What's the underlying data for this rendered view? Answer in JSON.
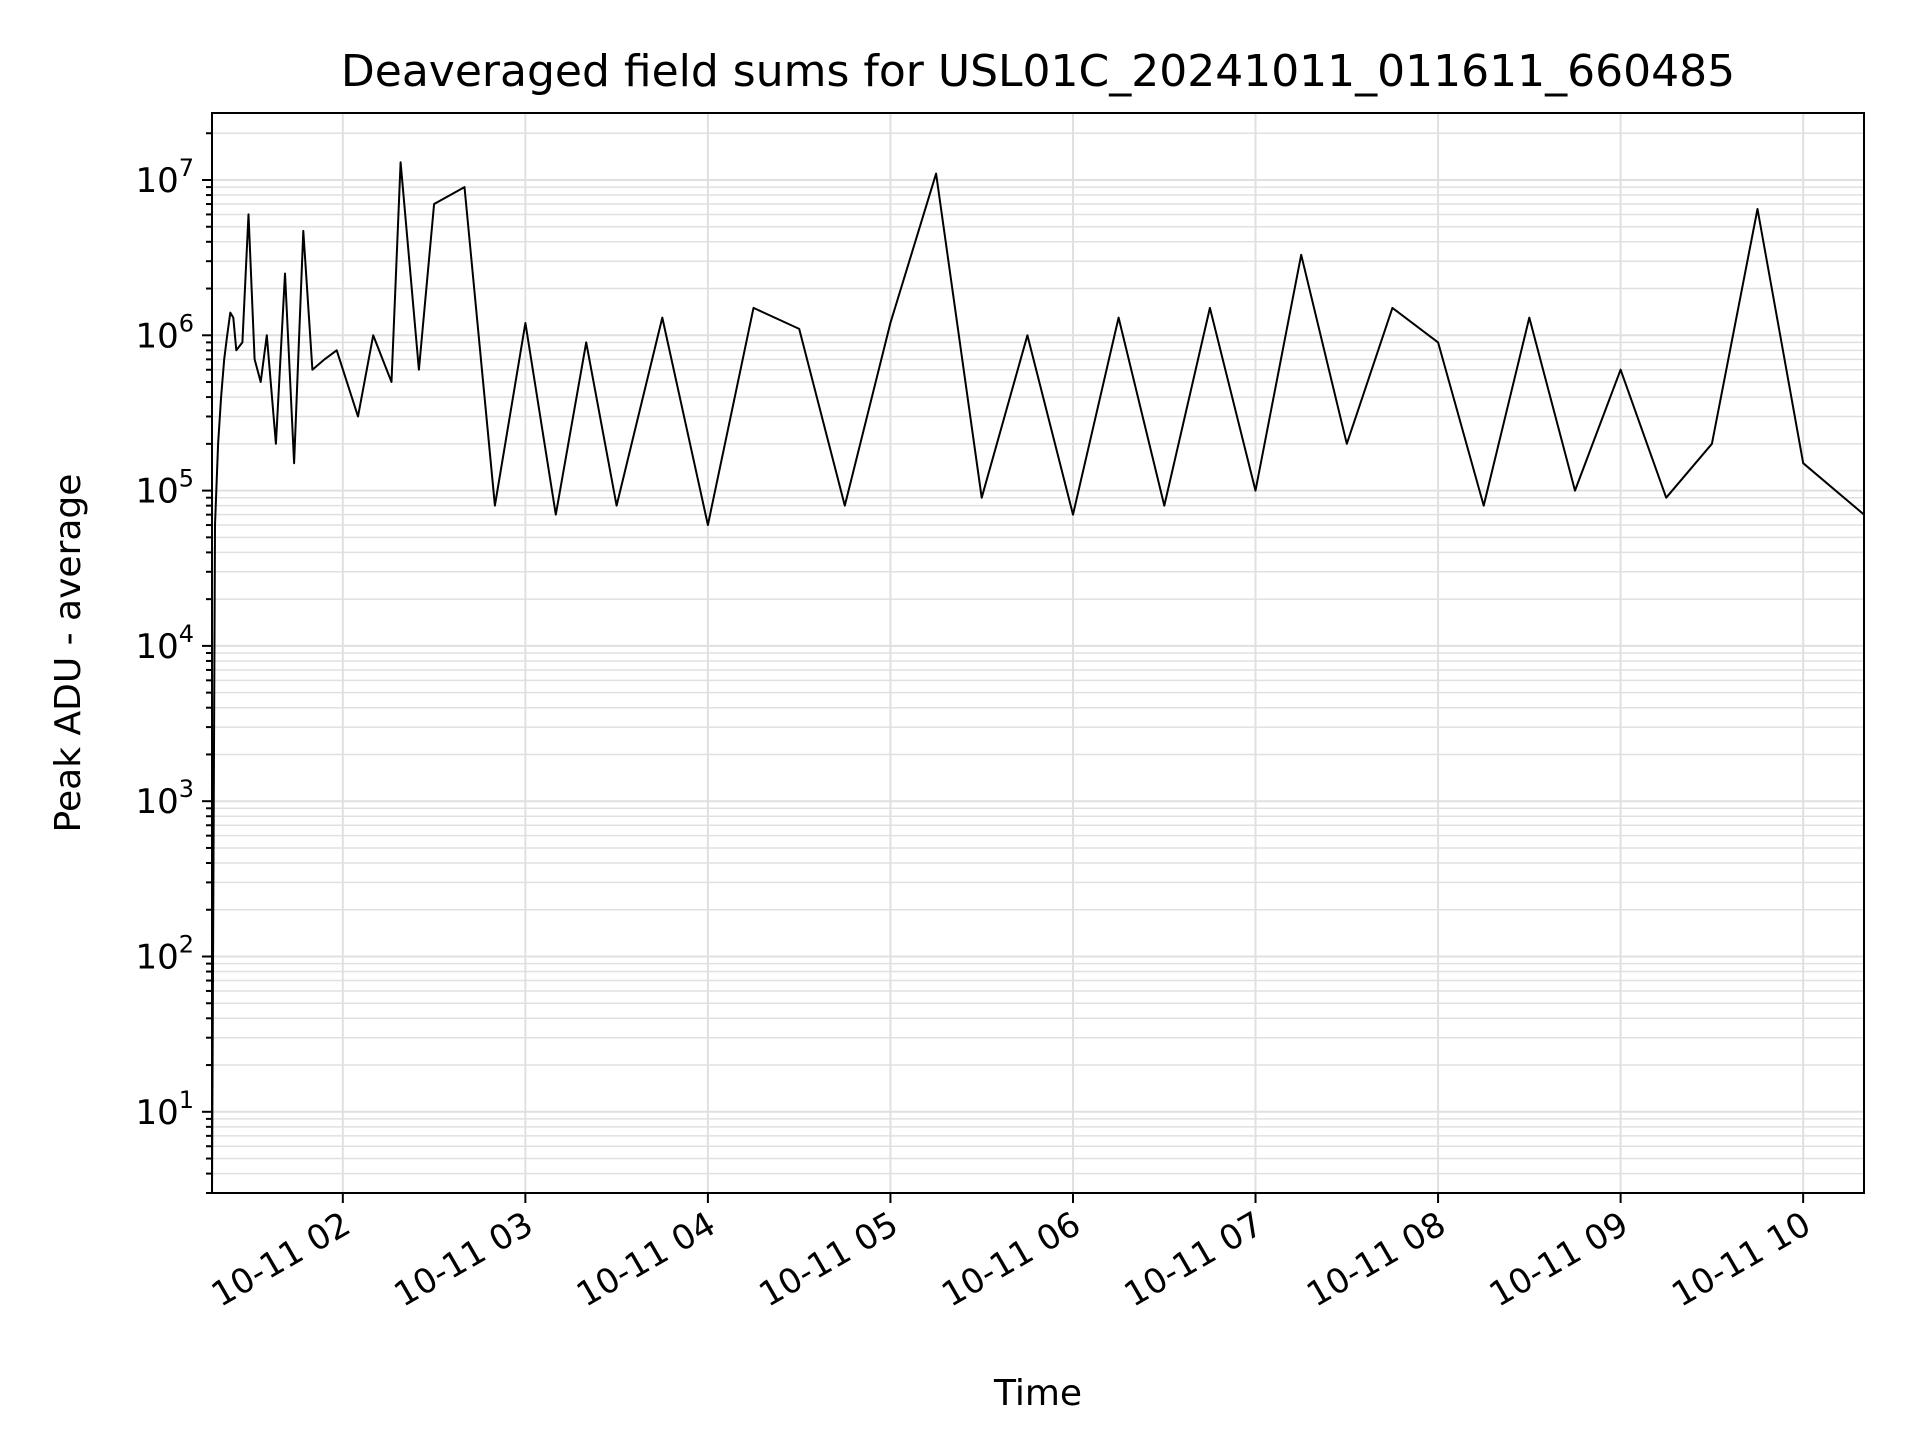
{
  "chart_data": {
    "type": "line",
    "title": "Deaveraged field sums for USL01C_20241011_011611_660485",
    "xlabel": "Time",
    "ylabel": "Peak ADU - average",
    "yscale": "log",
    "ylim": [
      3,
      27000000
    ],
    "xlim": [
      "2024-10-11 01:17",
      "2024-10-11 10:20"
    ],
    "grid": true,
    "grid_which": "both",
    "x_ticks": [
      "10-11 02",
      "10-11 03",
      "10-11 04",
      "10-11 05",
      "10-11 06",
      "10-11 07",
      "10-11 08",
      "10-11 09",
      "10-11 10"
    ],
    "y_ticks": [
      {
        "base": "10",
        "exp": "1"
      },
      {
        "base": "10",
        "exp": "2"
      },
      {
        "base": "10",
        "exp": "3"
      },
      {
        "base": "10",
        "exp": "4"
      },
      {
        "base": "10",
        "exp": "5"
      },
      {
        "base": "10",
        "exp": "6"
      },
      {
        "base": "10",
        "exp": "7"
      }
    ],
    "line_color": "#000000",
    "grid_color": "#e0e0e0",
    "series": [
      {
        "x": [
          "2024-10-11 01:17",
          "2024-10-11 01:18",
          "2024-10-11 01:19",
          "2024-10-11 01:20",
          "2024-10-11 01:21",
          "2024-10-11 01:22",
          "2024-10-11 01:23",
          "2024-10-11 01:24",
          "2024-10-11 01:25",
          "2024-10-11 01:27",
          "2024-10-11 01:29",
          "2024-10-11 01:31",
          "2024-10-11 01:33",
          "2024-10-11 01:35",
          "2024-10-11 01:38",
          "2024-10-11 01:41",
          "2024-10-11 01:44",
          "2024-10-11 01:47",
          "2024-10-11 01:50",
          "2024-10-11 01:54",
          "2024-10-11 01:58",
          "2024-10-11 02:05",
          "2024-10-11 02:10",
          "2024-10-11 02:16",
          "2024-10-11 02:19",
          "2024-10-11 02:25",
          "2024-10-11 02:30",
          "2024-10-11 02:40",
          "2024-10-11 02:50",
          "2024-10-11 03:00",
          "2024-10-11 03:10",
          "2024-10-11 03:20",
          "2024-10-11 03:30",
          "2024-10-11 03:45",
          "2024-10-11 04:00",
          "2024-10-11 04:15",
          "2024-10-11 04:30",
          "2024-10-11 04:45",
          "2024-10-11 05:00",
          "2024-10-11 05:15",
          "2024-10-11 05:30",
          "2024-10-11 05:45",
          "2024-10-11 06:00",
          "2024-10-11 06:15",
          "2024-10-11 06:30",
          "2024-10-11 06:45",
          "2024-10-11 07:00",
          "2024-10-11 07:15",
          "2024-10-11 07:30",
          "2024-10-11 07:45",
          "2024-10-11 08:00",
          "2024-10-11 08:15",
          "2024-10-11 08:30",
          "2024-10-11 08:45",
          "2024-10-11 09:00",
          "2024-10-11 09:15",
          "2024-10-11 09:30",
          "2024-10-11 09:45",
          "2024-10-11 10:00",
          "2024-10-11 10:20"
        ],
        "y": [
          3,
          60000,
          200000,
          400000,
          700000,
          1000000,
          1400000,
          1300000,
          800000,
          900000,
          6000000,
          700000,
          500000,
          1000000,
          200000,
          2500000,
          150000,
          4700000,
          600000,
          700000,
          800000,
          300000,
          1000000,
          500000,
          13000000,
          600000,
          7000000,
          9000000,
          80000,
          1200000,
          70000,
          900000,
          80000,
          1300000,
          60000,
          1500000,
          1100000,
          80000,
          1200000,
          11000000,
          90000,
          1000000,
          70000,
          1300000,
          80000,
          1500000,
          100000,
          3300000,
          200000,
          1500000,
          900000,
          80000,
          1300000,
          100000,
          600000,
          90000,
          200000,
          6500000,
          150000,
          70000
        ]
      }
    ]
  }
}
